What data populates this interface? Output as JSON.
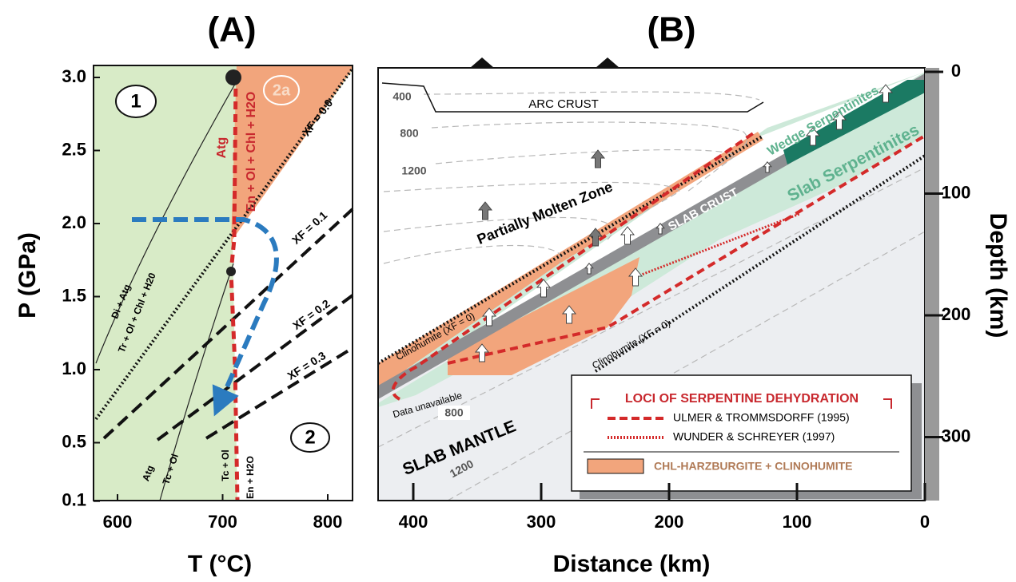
{
  "panel_a": {
    "label": "(A)",
    "y_title": "P (GPa)",
    "x_title": "T (°C)",
    "yticks": [
      {
        "value": 3,
        "label": "3.0"
      },
      2.5,
      {
        "value": 2,
        "label": "2.0"
      },
      1.5,
      {
        "value": 1,
        "label": "1.0"
      },
      0.5,
      0.1
    ],
    "xticks": [
      600,
      700,
      800
    ],
    "fields": [
      "1",
      "2a",
      "2"
    ],
    "reactions": {
      "atg_red": "Atg",
      "en_ol": "En + Ol + Chl + H2O",
      "di_atg": "Di + Atg",
      "tr_ol": "Tr + Ol + Chl + H20",
      "atg_low": "Atg",
      "tc_ol_left": "Tc + Ol",
      "tc_ol_right": "Tc + Ol",
      "en_h2o": "En + H2O"
    },
    "xf_labels": [
      "XF = 0.0",
      "XF = 0.1",
      "XF = 0.2",
      "XF = 0.3"
    ]
  },
  "panel_b": {
    "label": "(B)",
    "x_title": "Distance (km)",
    "y_title": "Depth (km)",
    "xticks": [
      400,
      300,
      200,
      100,
      0
    ],
    "yticks": [
      0,
      100,
      200,
      300
    ],
    "isotherms_wedge": [
      "400",
      "800",
      "1200"
    ],
    "isotherms_slab": [
      "800",
      "1200"
    ],
    "regions": {
      "arc_crust": "ARC CRUST",
      "molten": "Partially Molten Zone",
      "slab_crust": "SLAB CRUST",
      "wedge_serp": "Wedge Serpentinites",
      "slab_serp": "Slab Serpentinites",
      "slab_mantle": "SLAB MANTLE",
      "clino_upper": "Clinohumite (XF = 0)",
      "clino_lower": "Clinohumite (XF = 0)",
      "no_data": "Data unavailable"
    },
    "legend": {
      "title": "LOCI OF SERPENTINE DEHYDRATION",
      "dashed": "ULMER & TROMMSDORFF (1995)",
      "dotted": "WUNDER & SCHREYER (1997)",
      "area": "CHL-HARZBURGITE + CLINOHUMITE"
    }
  }
}
